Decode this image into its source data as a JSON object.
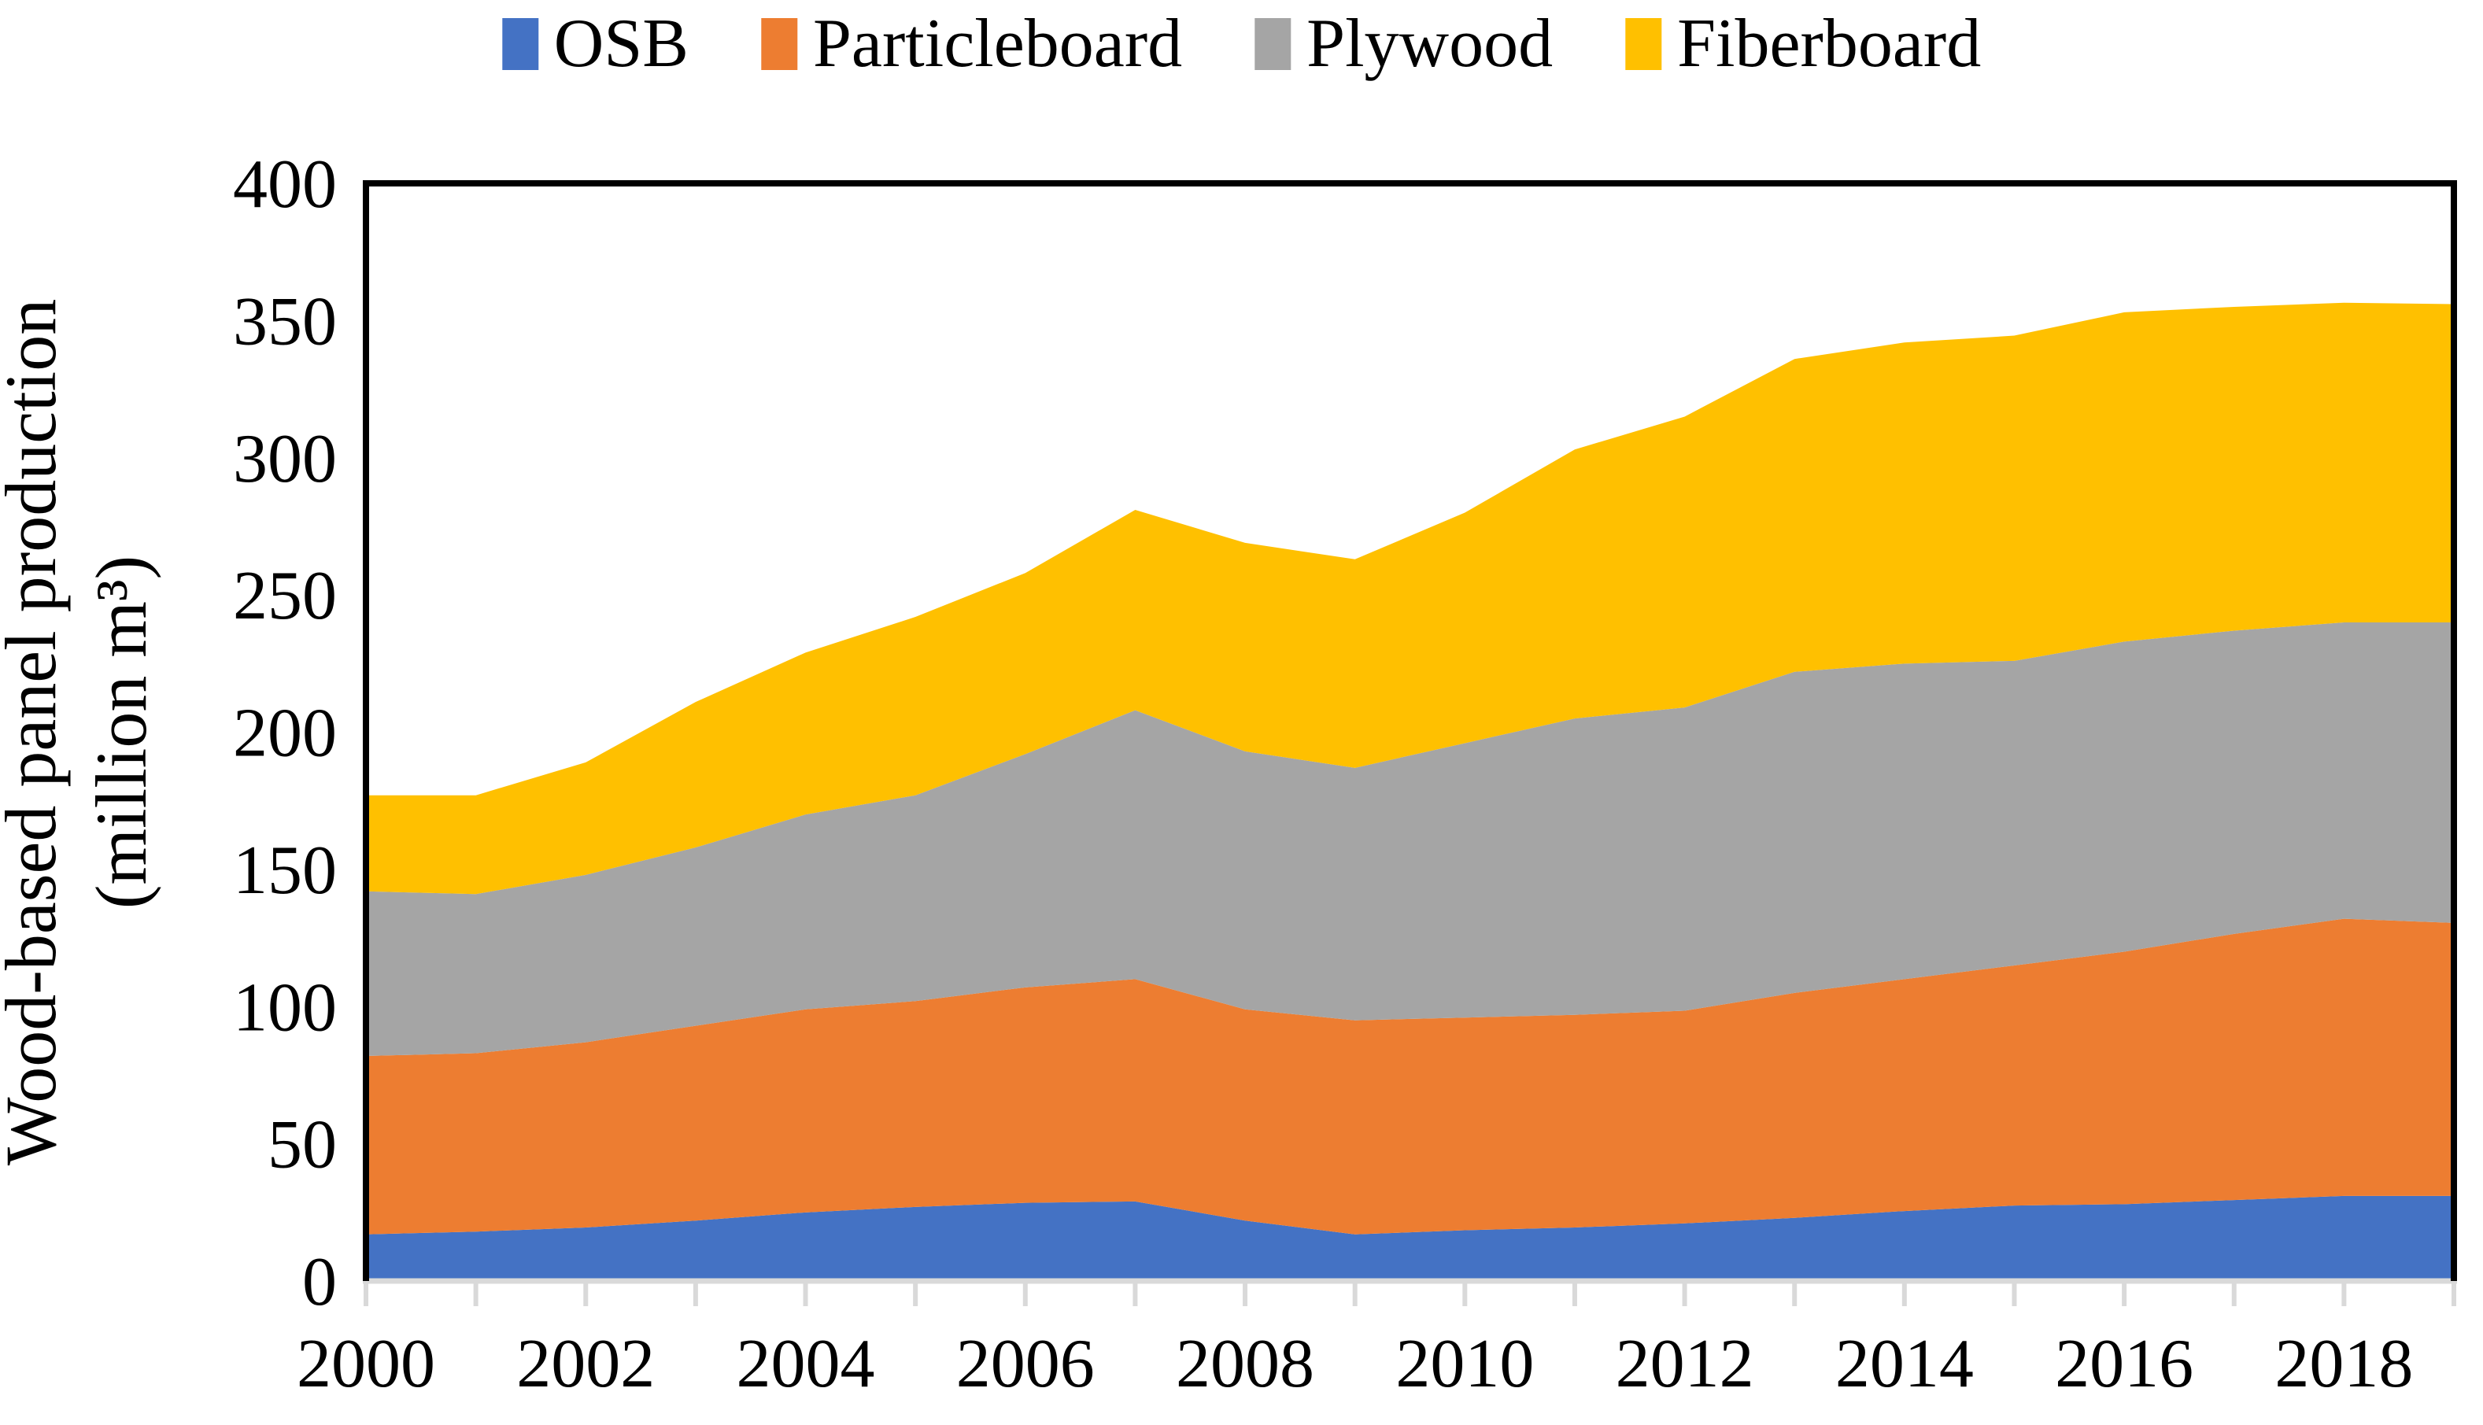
{
  "legend": [
    {
      "label": "OSB",
      "color": "#4472C4"
    },
    {
      "label": "Particleboard",
      "color": "#ED7D31"
    },
    {
      "label": "Plywood",
      "color": "#A5A5A5"
    },
    {
      "label": "Fiberboard",
      "color": "#FFC000"
    }
  ],
  "y_axis": {
    "title_line1": "Wood-based panel production",
    "title_line2": "(million m³)",
    "tick_labels": [
      "0",
      "50",
      "100",
      "150",
      "200",
      "250",
      "300",
      "350",
      "400"
    ],
    "min": 0,
    "max": 400,
    "step": 50
  },
  "x_axis": {
    "tick_labels": [
      "2000",
      "2002",
      "2004",
      "2006",
      "2008",
      "2010",
      "2012",
      "2014",
      "2016",
      "2018"
    ]
  },
  "colors": {
    "axis_border": "#000000",
    "tick_line": "#D9D9D9"
  },
  "chart_data": {
    "type": "area",
    "stacked": true,
    "title": "",
    "xlabel": "",
    "ylabel": "Wood-based panel production (million m³)",
    "ylim": [
      0,
      400
    ],
    "grid": false,
    "legend_position": "top",
    "x": [
      2000,
      2001,
      2002,
      2003,
      2004,
      2005,
      2006,
      2007,
      2008,
      2009,
      2010,
      2011,
      2012,
      2013,
      2014,
      2015,
      2016,
      2017,
      2018,
      2019
    ],
    "series": [
      {
        "name": "OSB",
        "color": "#4472C4",
        "values": [
          17,
          18,
          19.5,
          22,
          25,
          27,
          28.5,
          29,
          22,
          17,
          18.5,
          19.5,
          21,
          23,
          25.5,
          27.5,
          28,
          29.5,
          31,
          31
        ]
      },
      {
        "name": "Particleboard",
        "color": "#ED7D31",
        "values": [
          65,
          65,
          67.5,
          71,
          74,
          75,
          78.5,
          81,
          77,
          78,
          77.5,
          77.5,
          77.5,
          82,
          84.5,
          87.5,
          92,
          97,
          101,
          99.5
        ]
      },
      {
        "name": "Plywood",
        "color": "#A5A5A5",
        "values": [
          60,
          58,
          61,
          65,
          71,
          75,
          85,
          98,
          94,
          92,
          100,
          108,
          110.5,
          117,
          115,
          111,
          113,
          110.5,
          108,
          109.5
        ]
      },
      {
        "name": "Fiberboard",
        "color": "#FFC000",
        "values": [
          35,
          36,
          41,
          53,
          59,
          65,
          66,
          73,
          76,
          76,
          84,
          98,
          106,
          114,
          117,
          118.5,
          120,
          118,
          116.5,
          116
        ]
      }
    ]
  }
}
